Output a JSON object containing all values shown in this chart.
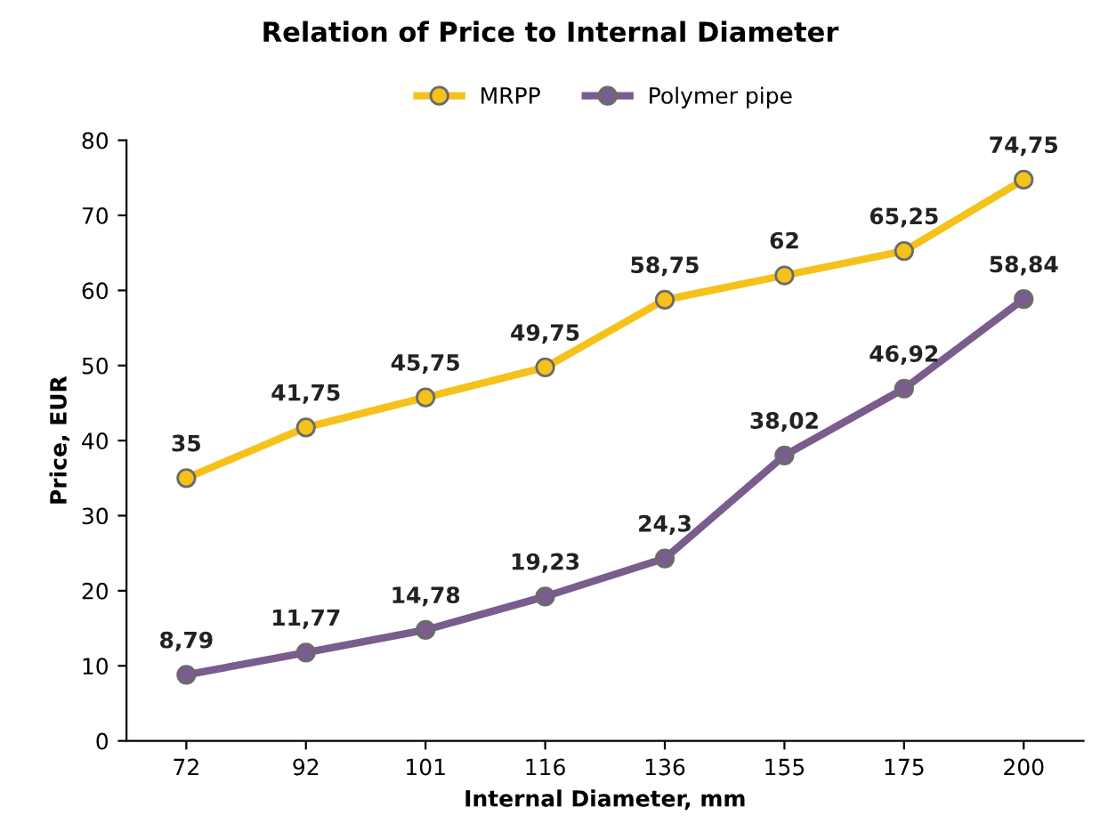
{
  "chart_data": {
    "type": "line",
    "title": "Relation of Price to Internal Diameter",
    "xlabel": "Internal Diameter, mm",
    "ylabel": "Price, EUR",
    "categories": [
      "72",
      "92",
      "101",
      "116",
      "136",
      "155",
      "175",
      "200"
    ],
    "series": [
      {
        "name": "MRPP",
        "color": "#f5c21b",
        "values": [
          35,
          41.75,
          45.75,
          49.75,
          58.75,
          62,
          65.25,
          74.75
        ],
        "value_labels": [
          "35",
          "41,75",
          "45,75",
          "49,75",
          "58,75",
          "62",
          "65,25",
          "74,75"
        ]
      },
      {
        "name": "Polymer pipe",
        "color": "#7a5c8e",
        "values": [
          8.79,
          11.77,
          14.78,
          19.23,
          24.3,
          38.02,
          46.92,
          58.84
        ],
        "value_labels": [
          "8,79",
          "11,77",
          "14,78",
          "19,23",
          "24,3",
          "38,02",
          "46,92",
          "58,84"
        ]
      }
    ],
    "ylim": [
      0,
      80
    ],
    "yticks": [
      0,
      10,
      20,
      30,
      40,
      50,
      60,
      70,
      80
    ],
    "grid": false,
    "legend": "top",
    "marker": "circle",
    "line_style": "solid"
  }
}
